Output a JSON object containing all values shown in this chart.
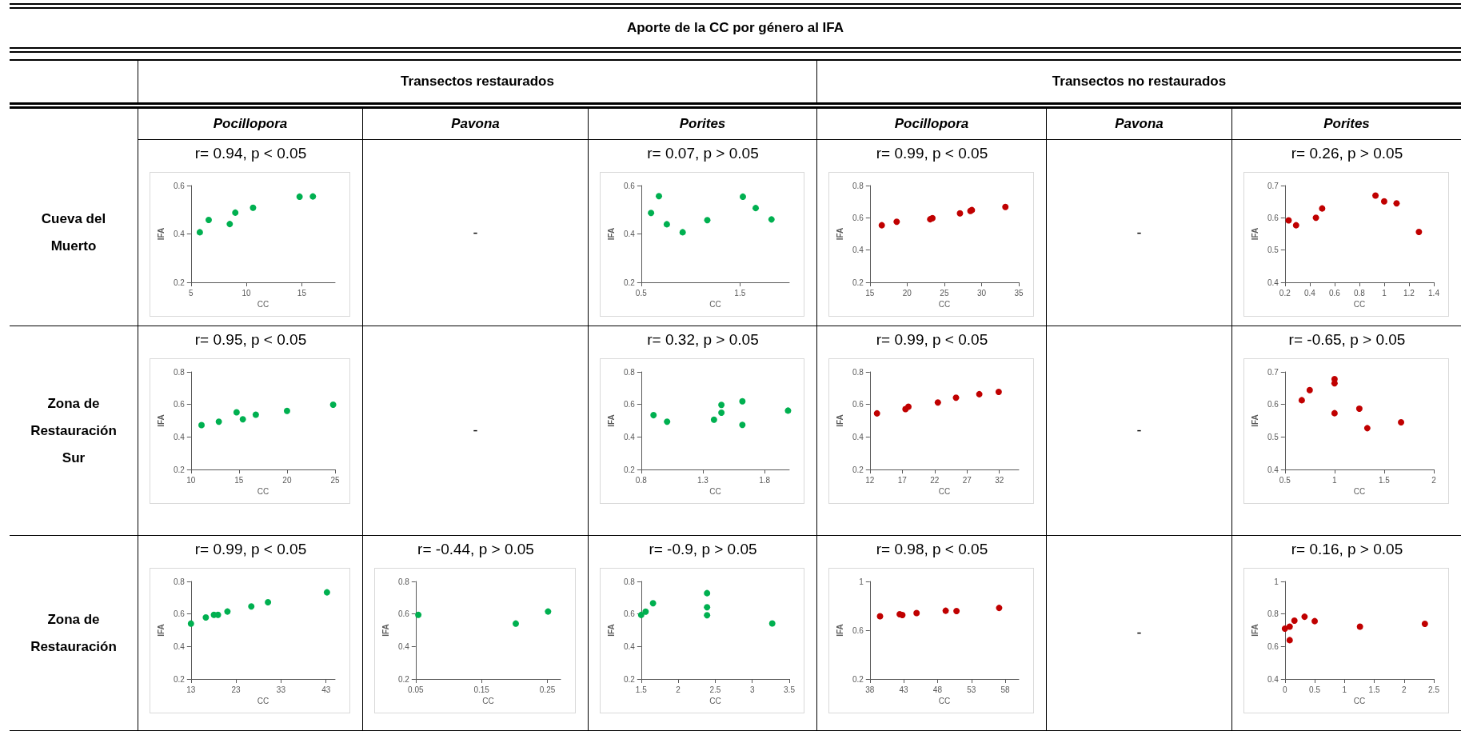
{
  "chart_data": [
    {
      "type": "other",
      "title": "Aporte de la CC por género al IFA",
      "annotations": [
        "Transectos restaurados",
        "Transectos no restaurados",
        "Pocillopora",
        "Pavona",
        "Porites",
        "Pocillopora",
        "Pavona",
        "Porites",
        "Cueva del Muerto",
        "Zona de Restauración Sur",
        "Zona de Restauración"
      ]
    },
    {
      "type": "scatter",
      "title": "r= 0.94, p < 0.05",
      "xlabel": "CC",
      "ylabel": "IFA",
      "marker": "circle",
      "color": "#00b050",
      "x": [
        5.8,
        6.6,
        8.5,
        9.0,
        10.6,
        14.8,
        16.0
      ],
      "values": [
        0.407,
        0.458,
        0.441,
        0.488,
        0.508,
        0.554,
        0.555
      ],
      "xlim": [
        5,
        18
      ],
      "xticks": [
        5,
        10,
        15
      ],
      "ylim": [
        0.2,
        0.6
      ],
      "yticks": [
        0.2,
        0.4,
        0.6
      ]
    },
    {
      "type": "other",
      "annotations": [
        "-"
      ]
    },
    {
      "type": "scatter",
      "title": "r= 0.07, p > 0.05",
      "xlabel": "CC",
      "ylabel": "IFA",
      "marker": "circle",
      "color": "#00b050",
      "x": [
        0.6,
        0.68,
        0.76,
        0.92,
        1.17,
        1.53,
        1.66,
        1.82
      ],
      "values": [
        0.487,
        0.556,
        0.44,
        0.407,
        0.457,
        0.554,
        0.507,
        0.46
      ],
      "xlim": [
        0.5,
        2
      ],
      "xticks": [
        0.5,
        1.5
      ],
      "ylim": [
        0.2,
        0.6
      ],
      "yticks": [
        0.2,
        0.4,
        0.6
      ]
    },
    {
      "type": "scatter",
      "title": "r= 0.99, p < 0.05",
      "xlabel": "CC",
      "ylabel": "IFA",
      "marker": "circle",
      "color": "#c00000",
      "x": [
        16.6,
        18.6,
        23.1,
        23.4,
        27.1,
        28.5,
        28.7,
        33.2
      ],
      "values": [
        0.554,
        0.576,
        0.591,
        0.598,
        0.628,
        0.643,
        0.648,
        0.667
      ],
      "xlim": [
        15,
        35
      ],
      "xticks": [
        15,
        20,
        25,
        30,
        35
      ],
      "ylim": [
        0.2,
        0.8
      ],
      "yticks": [
        0.2,
        0.4,
        0.6,
        0.8
      ]
    },
    {
      "type": "other",
      "annotations": [
        "-"
      ]
    },
    {
      "type": "scatter",
      "title": "r= 0.26, p > 0.05",
      "xlabel": "CC",
      "ylabel": "IFA",
      "marker": "circle",
      "color": "#c00000",
      "x": [
        0.23,
        0.29,
        0.45,
        0.5,
        0.93,
        1.0,
        1.1,
        1.28
      ],
      "values": [
        0.592,
        0.577,
        0.6,
        0.629,
        0.669,
        0.651,
        0.645,
        0.556
      ],
      "xlim": [
        0.2,
        1.4
      ],
      "xticks": [
        0.2,
        0.4,
        0.6,
        0.8,
        1,
        1.2,
        1.4
      ],
      "ylim": [
        0.4,
        0.7
      ],
      "yticks": [
        0.4,
        0.5,
        0.6,
        0.7
      ]
    },
    {
      "type": "scatter",
      "title": "r= 0.95, p < 0.05",
      "xlabel": "CC",
      "ylabel": "IFA",
      "marker": "circle",
      "color": "#00b050",
      "x": [
        11.1,
        12.9,
        14.75,
        15.4,
        16.75,
        20.0,
        24.8
      ],
      "values": [
        0.473,
        0.494,
        0.552,
        0.509,
        0.537,
        0.56,
        0.598
      ],
      "xlim": [
        10,
        25
      ],
      "xticks": [
        10,
        15,
        20,
        25
      ],
      "ylim": [
        0.2,
        0.8
      ],
      "yticks": [
        0.2,
        0.4,
        0.6,
        0.8
      ]
    },
    {
      "type": "other",
      "annotations": [
        "-"
      ]
    },
    {
      "type": "scatter",
      "title": "r= 0.32, p > 0.05",
      "xlabel": "CC",
      "ylabel": "IFA",
      "marker": "circle",
      "color": "#00b050",
      "x": [
        0.9,
        1.01,
        1.39,
        1.45,
        1.45,
        1.62,
        1.62,
        1.99
      ],
      "values": [
        0.534,
        0.494,
        0.506,
        0.597,
        0.549,
        0.619,
        0.474,
        0.562
      ],
      "xlim": [
        0.8,
        2.0
      ],
      "xticks": [
        0.8,
        1.3,
        1.8
      ],
      "ylim": [
        0.2,
        0.8
      ],
      "yticks": [
        0.2,
        0.4,
        0.6,
        0.8
      ]
    },
    {
      "type": "scatter",
      "title": "r= 0.99, p < 0.05",
      "xlabel": "CC",
      "ylabel": "IFA",
      "marker": "circle",
      "color": "#c00000",
      "x": [
        13.1,
        17.5,
        17.95,
        22.5,
        25.3,
        28.9,
        31.9
      ],
      "values": [
        0.545,
        0.571,
        0.586,
        0.612,
        0.641,
        0.663,
        0.677
      ],
      "xlim": [
        12,
        35
      ],
      "xticks": [
        12,
        17,
        22,
        27,
        32
      ],
      "ylim": [
        0.2,
        0.8
      ],
      "yticks": [
        0.2,
        0.4,
        0.6,
        0.8
      ]
    },
    {
      "type": "other",
      "annotations": [
        "-"
      ]
    },
    {
      "type": "scatter",
      "title": "r= -0.65, p > 0.05",
      "xlabel": "CC",
      "ylabel": "IFA",
      "marker": "circle",
      "color": "#c00000",
      "x": [
        0.67,
        0.75,
        1.0,
        1.0,
        1.0,
        1.25,
        1.33,
        1.67
      ],
      "values": [
        0.613,
        0.644,
        0.678,
        0.665,
        0.573,
        0.587,
        0.527,
        0.545
      ],
      "xlim": [
        0.5,
        2
      ],
      "xticks": [
        0.5,
        1,
        1.5,
        2
      ],
      "ylim": [
        0.4,
        0.7
      ],
      "yticks": [
        0.4,
        0.5,
        0.6,
        0.7
      ]
    },
    {
      "type": "scatter",
      "title": "r= 0.99, p < 0.05",
      "xlabel": "CC",
      "ylabel": "IFA",
      "marker": "circle",
      "color": "#00b050",
      "x": [
        13.0,
        16.3,
        18.1,
        19.0,
        21.1,
        26.4,
        30.1,
        43.2
      ],
      "values": [
        0.541,
        0.579,
        0.595,
        0.595,
        0.615,
        0.646,
        0.672,
        0.733
      ],
      "xlim": [
        13,
        45
      ],
      "xticks": [
        13,
        23,
        33,
        43
      ],
      "ylim": [
        0.2,
        0.8
      ],
      "yticks": [
        0.2,
        0.4,
        0.6,
        0.8
      ]
    },
    {
      "type": "scatter",
      "title": "r= -0.44, p > 0.05",
      "xlabel": "CC",
      "ylabel": "IFA",
      "marker": "circle",
      "color": "#00b050",
      "x": [
        0.054,
        0.202,
        0.251
      ],
      "values": [
        0.595,
        0.541,
        0.615
      ],
      "xlim": [
        0.05,
        0.27
      ],
      "xticks": [
        0.05,
        0.15,
        0.25
      ],
      "ylim": [
        0.2,
        0.8
      ],
      "yticks": [
        0.2,
        0.4,
        0.6,
        0.8
      ]
    },
    {
      "type": "scatter",
      "title": "r= -0.9, p > 0.05",
      "xlabel": "CC",
      "ylabel": "IFA",
      "marker": "circle",
      "color": "#00b050",
      "x": [
        1.5,
        1.56,
        1.66,
        2.39,
        2.39,
        2.39,
        3.27
      ],
      "values": [
        0.594,
        0.614,
        0.666,
        0.728,
        0.641,
        0.592,
        0.542
      ],
      "xlim": [
        1.5,
        3.5
      ],
      "xticks": [
        1.5,
        2,
        2.5,
        3,
        3.5
      ],
      "ylim": [
        0.2,
        0.8
      ],
      "yticks": [
        0.2,
        0.4,
        0.6,
        0.8
      ]
    },
    {
      "type": "scatter",
      "title": "r= 0.98, p < 0.05",
      "xlabel": "CC",
      "ylabel": "IFA",
      "marker": "circle",
      "color": "#c00000",
      "x": [
        39.5,
        42.4,
        42.8,
        44.9,
        49.2,
        50.8,
        57.1
      ],
      "values": [
        0.715,
        0.731,
        0.725,
        0.741,
        0.76,
        0.757,
        0.783
      ],
      "xlim": [
        38,
        60
      ],
      "xticks": [
        38,
        43,
        48,
        53,
        58
      ],
      "ylim": [
        0.2,
        1
      ],
      "yticks": [
        0.2,
        0.6,
        1
      ]
    },
    {
      "type": "other",
      "annotations": [
        "-"
      ]
    },
    {
      "type": "scatter",
      "title": "r= 0.16, p > 0.05",
      "xlabel": "CC",
      "ylabel": "IFA",
      "marker": "circle",
      "color": "#c00000",
      "x": [
        0,
        0.08,
        0.08,
        0.16,
        0.33,
        0.5,
        1.26,
        2.35
      ],
      "values": [
        0.71,
        0.722,
        0.639,
        0.759,
        0.783,
        0.756,
        0.722,
        0.739
      ],
      "xlim": [
        0,
        2.5
      ],
      "xticks": [
        0,
        0.5,
        1,
        1.5,
        2,
        2.5
      ],
      "ylim": [
        0.4,
        1
      ],
      "yticks": [
        0.4,
        0.6,
        0.8,
        1
      ]
    }
  ]
}
